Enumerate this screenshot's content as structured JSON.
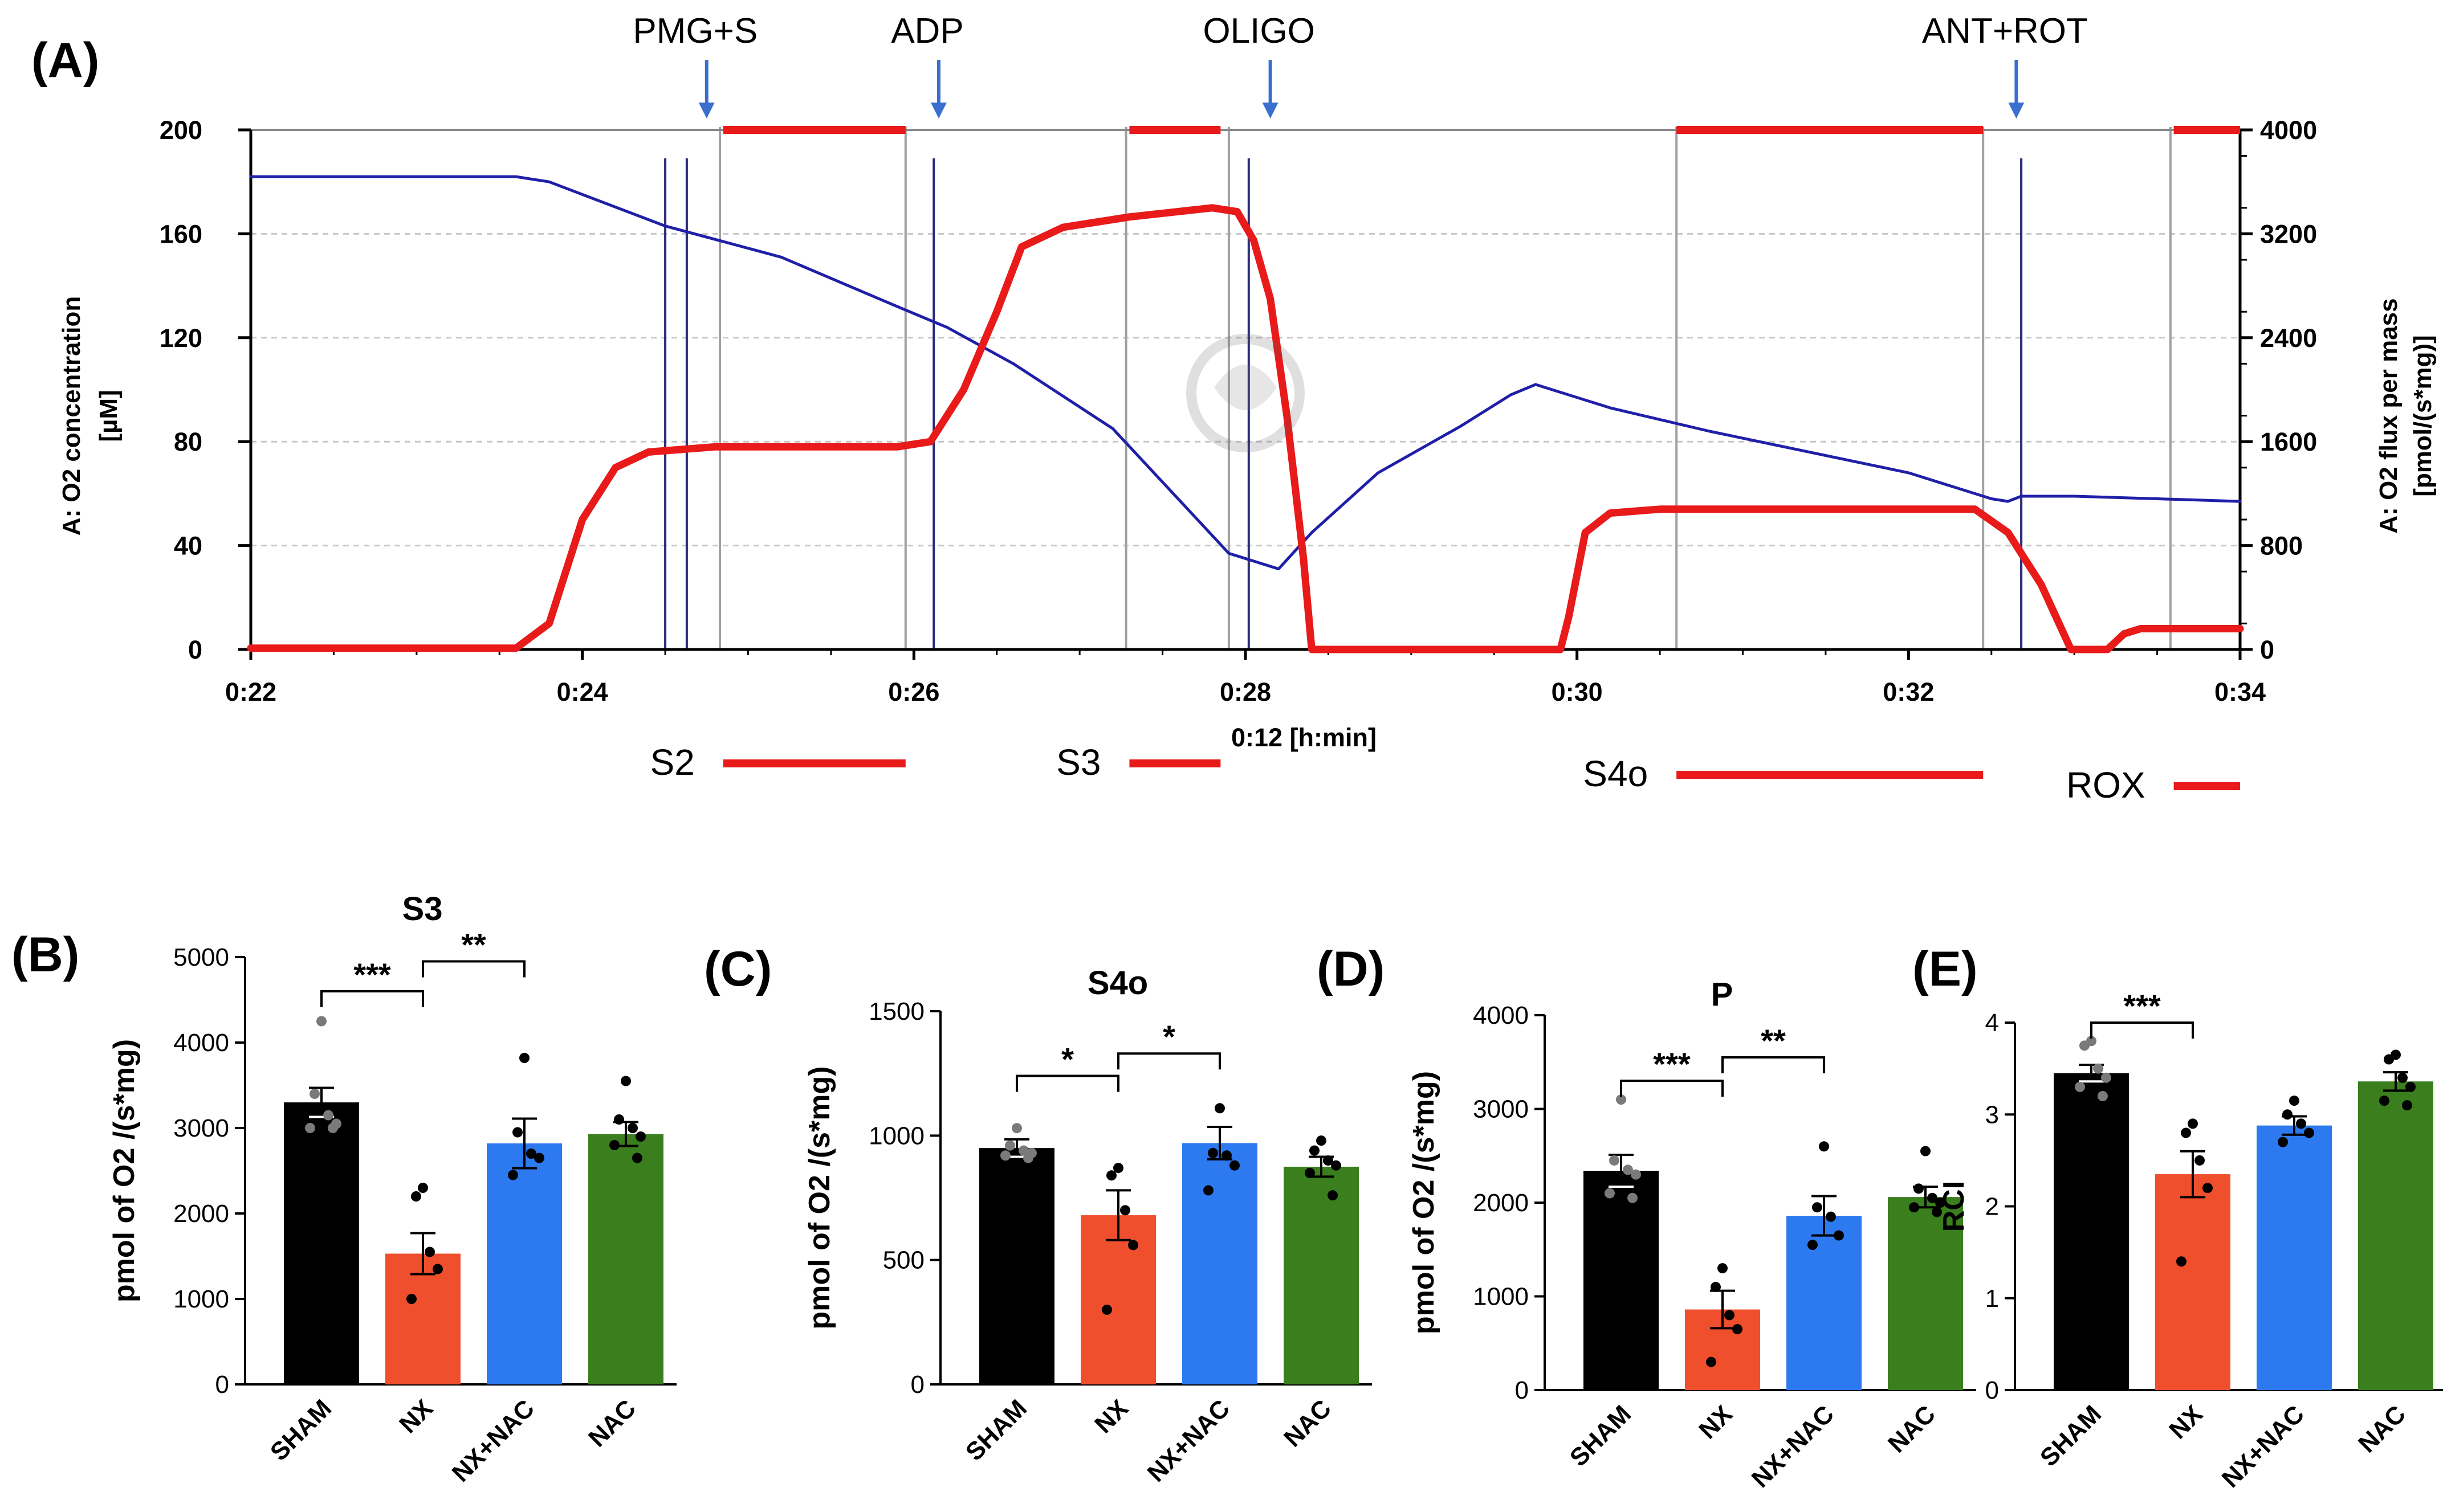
{
  "colors": {
    "o2_concentration": "#1f1fa8",
    "o2_flux": "#e81a1a",
    "event_line": "#2a2a7a",
    "mark_line": "#a0a0a0",
    "arrow": "#3a6fd0",
    "sham": "#000000",
    "nx": "#ef4f2c",
    "nx_nac": "#2d7af0",
    "nac": "#3a7e1e"
  },
  "chart_data": [
    {
      "panel": "(A)",
      "type": "line",
      "x_label": "0:12 [h:min]",
      "x_ticks": [
        "0:22",
        "0:24",
        "0:26",
        "0:28",
        "0:30",
        "0:32",
        "0:34"
      ],
      "x_range_min": [
        22,
        34
      ],
      "left_axis": {
        "label": "A: O2 concentration",
        "unit": "[µM]",
        "range": [
          0,
          200
        ],
        "ticks": [
          "0",
          "40",
          "80",
          "120",
          "160",
          "200"
        ]
      },
      "right_axis": {
        "label": "A: O2 flux per mass",
        "unit": "[pmol/(s*mg)]",
        "range": [
          0,
          4000
        ],
        "ticks": [
          "0",
          "800",
          "1600",
          "2400",
          "3200",
          "4000"
        ]
      },
      "injections": [
        {
          "label": "PMG+S",
          "t": 24.75
        },
        {
          "label": "ADP",
          "t": 26.15
        },
        {
          "label": "OLIGO",
          "t": 28.15
        },
        {
          "label": "ANT+ROT",
          "t": 32.65
        }
      ],
      "states": [
        {
          "label": "S2",
          "start": 24.85,
          "end": 25.95
        },
        {
          "label": "S3",
          "start": 27.3,
          "end": 27.85
        },
        {
          "label": "S4o",
          "start": 30.6,
          "end": 32.45
        },
        {
          "label": "ROX",
          "start": 33.6,
          "end": 34.0
        }
      ],
      "event_lines_t": [
        24.5,
        24.63,
        26.12,
        28.02,
        32.68
      ],
      "mark_lines_t": [
        24.83,
        25.95,
        27.28,
        27.9,
        30.6,
        32.45,
        33.58
      ],
      "series": [
        {
          "name": "O2 concentration",
          "axis": "left",
          "points": [
            [
              22.0,
              182
            ],
            [
              23.6,
              182
            ],
            [
              23.8,
              180
            ],
            [
              24.5,
              163
            ],
            [
              25.2,
              151
            ],
            [
              25.9,
              132
            ],
            [
              26.2,
              124
            ],
            [
              26.6,
              110
            ],
            [
              27.2,
              85
            ],
            [
              27.9,
              37
            ],
            [
              28.2,
              31
            ],
            [
              28.4,
              45
            ],
            [
              28.8,
              68
            ],
            [
              29.3,
              86
            ],
            [
              29.6,
              98
            ],
            [
              29.75,
              102
            ],
            [
              30.2,
              93
            ],
            [
              30.8,
              84
            ],
            [
              31.4,
              76
            ],
            [
              32.0,
              68
            ],
            [
              32.5,
              58
            ],
            [
              32.6,
              57
            ],
            [
              32.68,
              59
            ],
            [
              33.0,
              59
            ],
            [
              33.5,
              58
            ],
            [
              34.0,
              57
            ]
          ]
        },
        {
          "name": "O2 flux per mass",
          "axis": "right",
          "points": [
            [
              22.0,
              10
            ],
            [
              23.6,
              10
            ],
            [
              23.8,
              200
            ],
            [
              24.0,
              1000
            ],
            [
              24.2,
              1400
            ],
            [
              24.4,
              1520
            ],
            [
              24.8,
              1560
            ],
            [
              25.9,
              1560
            ],
            [
              26.1,
              1600
            ],
            [
              26.3,
              2000
            ],
            [
              26.5,
              2600
            ],
            [
              26.65,
              3100
            ],
            [
              26.9,
              3250
            ],
            [
              27.3,
              3330
            ],
            [
              27.8,
              3400
            ],
            [
              27.95,
              3370
            ],
            [
              28.05,
              3150
            ],
            [
              28.15,
              2700
            ],
            [
              28.25,
              1800
            ],
            [
              28.35,
              700
            ],
            [
              28.4,
              0
            ],
            [
              29.9,
              0
            ],
            [
              29.95,
              250
            ],
            [
              30.05,
              900
            ],
            [
              30.2,
              1050
            ],
            [
              30.5,
              1080
            ],
            [
              31.5,
              1080
            ],
            [
              32.4,
              1080
            ],
            [
              32.6,
              900
            ],
            [
              32.8,
              500
            ],
            [
              32.98,
              0
            ],
            [
              33.2,
              0
            ],
            [
              33.3,
              120
            ],
            [
              33.4,
              160
            ],
            [
              34.0,
              160
            ]
          ]
        }
      ]
    },
    {
      "panel": "(B)",
      "type": "bar",
      "title": "S3",
      "ylabel": "pmol of O2 /(s*mg)",
      "ylim": [
        0,
        5000
      ],
      "yticks": [
        "0",
        "1000",
        "2000",
        "3000",
        "4000",
        "5000"
      ],
      "categories": [
        "SHAM",
        "NX",
        "NX+NAC",
        "NAC"
      ],
      "values": [
        3300,
        1530,
        2820,
        2930
      ],
      "sem": [
        170,
        240,
        290,
        140
      ],
      "points": [
        [
          4250,
          3400,
          3150,
          3050,
          3000,
          3000
        ],
        [
          2300,
          2200,
          1550,
          1350,
          1000
        ],
        [
          3820,
          2950,
          2700,
          2650,
          2450
        ],
        [
          3550,
          3100,
          3000,
          2900,
          2800,
          2650
        ]
      ],
      "significance": [
        {
          "from": 0,
          "to": 1,
          "label": "***",
          "y": 4600
        },
        {
          "from": 1,
          "to": 2,
          "label": "**",
          "y": 4950
        }
      ]
    },
    {
      "panel": "(C)",
      "type": "bar",
      "title": "S4o",
      "ylabel": "pmol of O2 /(s*mg)",
      "ylim": [
        0,
        1500
      ],
      "yticks": [
        "0",
        "500",
        "1000",
        "1500"
      ],
      "categories": [
        "SHAM",
        "NX",
        "NX+NAC",
        "NAC"
      ],
      "values": [
        950,
        680,
        970,
        875
      ],
      "sem": [
        35,
        100,
        65,
        40
      ],
      "points": [
        [
          1030,
          960,
          940,
          930,
          920,
          910
        ],
        [
          870,
          840,
          700,
          560,
          300
        ],
        [
          1110,
          930,
          920,
          880,
          780
        ],
        [
          980,
          940,
          900,
          880,
          850,
          760
        ]
      ],
      "significance": [
        {
          "from": 0,
          "to": 1,
          "label": "*",
          "y": 1240
        },
        {
          "from": 1,
          "to": 2,
          "label": "*",
          "y": 1330
        }
      ]
    },
    {
      "panel": "(D)",
      "type": "bar",
      "title": "P",
      "ylabel": "pmol of O2 /(s*mg)",
      "ylim": [
        0,
        4000
      ],
      "yticks": [
        "0",
        "1000",
        "2000",
        "3000",
        "4000"
      ],
      "categories": [
        "SHAM",
        "NX",
        "NX+NAC",
        "NAC"
      ],
      "values": [
        2340,
        860,
        1860,
        2060
      ],
      "sem": [
        170,
        200,
        210,
        110
      ],
      "points": [
        [
          3100,
          2450,
          2350,
          2300,
          2100,
          2050
        ],
        [
          1300,
          1100,
          800,
          650,
          300
        ],
        [
          2600,
          1950,
          1850,
          1650,
          1550
        ],
        [
          2550,
          2150,
          2050,
          2000,
          1950,
          1900
        ]
      ],
      "significance": [
        {
          "from": 0,
          "to": 1,
          "label": "***",
          "y": 3300
        },
        {
          "from": 1,
          "to": 2,
          "label": "**",
          "y": 3550
        }
      ]
    },
    {
      "panel": "(E)",
      "type": "bar",
      "title": "",
      "ylabel": "RCI",
      "ylim": [
        0,
        4
      ],
      "yticks": [
        "0",
        "1",
        "2",
        "3",
        "4"
      ],
      "categories": [
        "SHAM",
        "NX",
        "NX+NAC",
        "NAC"
      ],
      "values": [
        3.45,
        2.35,
        2.88,
        3.36
      ],
      "sem": [
        0.09,
        0.25,
        0.1,
        0.1
      ],
      "points": [
        [
          3.8,
          3.75,
          3.5,
          3.4,
          3.3,
          3.2
        ],
        [
          2.9,
          2.8,
          2.5,
          2.2,
          1.4
        ],
        [
          3.15,
          3.0,
          2.9,
          2.8,
          2.7
        ],
        [
          3.65,
          3.6,
          3.4,
          3.3,
          3.15,
          3.1
        ]
      ],
      "significance": [
        {
          "from": 0,
          "to": 1,
          "label": "***",
          "y": 4.0
        }
      ]
    }
  ]
}
